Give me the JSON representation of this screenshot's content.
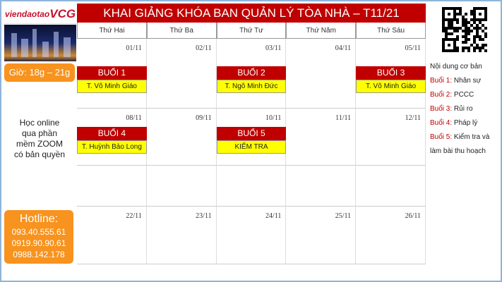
{
  "logo": {
    "text_a": "viendaotao",
    "text_b": "VCG"
  },
  "hours": "Giờ: 18g – 21g",
  "online": [
    "Học online",
    "qua phần",
    "mềm ZOOM",
    "có bản quyền"
  ],
  "hotline": {
    "title": "Hotline:",
    "numbers": [
      "093.40.555.61",
      "0919.90.90.61",
      "0988.142.178"
    ]
  },
  "title": "KHAI GIẢNG KHÓA BAN QUẢN LÝ TÒA NHÀ –  T11/21",
  "days": [
    "Thứ Hai",
    "Thứ Ba",
    "Thứ Tư",
    "Thứ Năm",
    "Thứ Sáu"
  ],
  "weeks": [
    {
      "dates": [
        "01/11",
        "02/11",
        "03/11",
        "04/11",
        "05/11"
      ],
      "sessions": [
        {
          "day": 0,
          "label": "BUỔI 1",
          "teacher": "T. Võ Minh Giáo"
        },
        {
          "day": 2,
          "label": "BUỔI 2",
          "teacher": "T. Ngô Minh Đức"
        },
        {
          "day": 4,
          "label": "BUỔI 3",
          "teacher": "T. Võ Minh Giáo"
        }
      ]
    },
    {
      "dates": [
        "08/11",
        "09/11",
        "10/11",
        "11/11",
        "12/11"
      ],
      "sessions": [
        {
          "day": 0,
          "label": "BUỔI 4",
          "teacher": "T. Huỳnh Bảo Long"
        },
        {
          "day": 2,
          "label": "BUỔI 5",
          "teacher": "KIỂM TRA"
        }
      ]
    },
    {
      "dates": [
        "",
        "",
        "",
        "",
        ""
      ],
      "sessions": []
    },
    {
      "dates": [
        "22/11",
        "23/11",
        "24/11",
        "25/11",
        "26/11"
      ],
      "sessions": []
    }
  ],
  "content": {
    "heading": "Nội dung cơ bản",
    "items": [
      {
        "key": "Buổi 1:",
        "value": " Nhân sự"
      },
      {
        "key": "Buổi 2:",
        "value": " PCCC"
      },
      {
        "key": "Buổi 3:",
        "value": " Rủi ro"
      },
      {
        "key": "Buổi 4:",
        "value": " Pháp lý"
      },
      {
        "key": "Buổi  5:",
        "value": "  Kiểm  tra  và làm bài thu hoạch"
      }
    ]
  },
  "colors": {
    "red": "#c00000",
    "yellow": "#ffff00",
    "orange": "#f7931e"
  }
}
